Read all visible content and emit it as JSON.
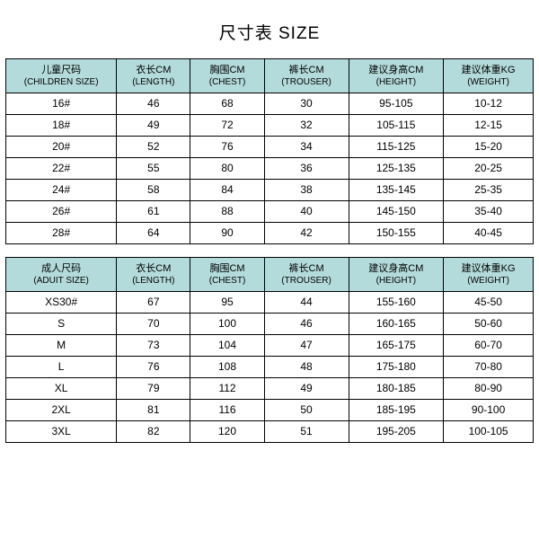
{
  "title": "尺寸表 SIZE",
  "header_bg": "#b4dbdb",
  "border_color": "#000000",
  "children_table": {
    "columns": [
      {
        "cn": "儿童尺码",
        "en": "(CHILDREN SIZE)"
      },
      {
        "cn": "衣长CM",
        "en": "(LENGTH)"
      },
      {
        "cn": "胸围CM",
        "en": "(CHEST)"
      },
      {
        "cn": "裤长CM",
        "en": "(TROUSER)"
      },
      {
        "cn": "建议身高CM",
        "en": "(HEIGHT)"
      },
      {
        "cn": "建议体重KG",
        "en": "(WEIGHT)"
      }
    ],
    "rows": [
      [
        "16#",
        "46",
        "68",
        "30",
        "95-105",
        "10-12"
      ],
      [
        "18#",
        "49",
        "72",
        "32",
        "105-115",
        "12-15"
      ],
      [
        "20#",
        "52",
        "76",
        "34",
        "115-125",
        "15-20"
      ],
      [
        "22#",
        "55",
        "80",
        "36",
        "125-135",
        "20-25"
      ],
      [
        "24#",
        "58",
        "84",
        "38",
        "135-145",
        "25-35"
      ],
      [
        "26#",
        "61",
        "88",
        "40",
        "145-150",
        "35-40"
      ],
      [
        "28#",
        "64",
        "90",
        "42",
        "150-155",
        "40-45"
      ]
    ]
  },
  "adult_table": {
    "columns": [
      {
        "cn": "成人尺码",
        "en": "(ADUIT SIZE)"
      },
      {
        "cn": "衣长CM",
        "en": "(LENGTH)"
      },
      {
        "cn": "胸围CM",
        "en": "(CHEST)"
      },
      {
        "cn": "裤长CM",
        "en": "(TROUSER)"
      },
      {
        "cn": "建议身高CM",
        "en": "(HEIGHT)"
      },
      {
        "cn": "建议体重KG",
        "en": "(WEIGHT)"
      }
    ],
    "rows": [
      [
        "XS30#",
        "67",
        "95",
        "44",
        "155-160",
        "45-50"
      ],
      [
        "S",
        "70",
        "100",
        "46",
        "160-165",
        "50-60"
      ],
      [
        "M",
        "73",
        "104",
        "47",
        "165-175",
        "60-70"
      ],
      [
        "L",
        "76",
        "108",
        "48",
        "175-180",
        "70-80"
      ],
      [
        "XL",
        "79",
        "112",
        "49",
        "180-185",
        "80-90"
      ],
      [
        "2XL",
        "81",
        "116",
        "50",
        "185-195",
        "90-100"
      ],
      [
        "3XL",
        "82",
        "120",
        "51",
        "195-205",
        "100-105"
      ]
    ]
  }
}
